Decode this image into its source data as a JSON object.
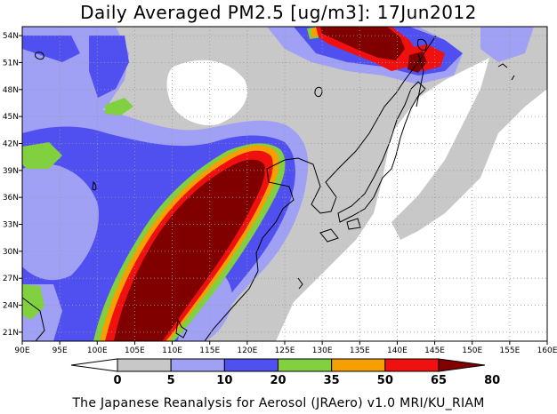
{
  "title": "Daily Averaged PM2.5 [ug/m3]: 17Jun2012",
  "caption": "The Japanese Reanalysis for Aerosol (JRAero) v1.0 MRI/KU_RIAM",
  "map": {
    "lon_labels": [
      "90E",
      "95E",
      "100E",
      "105E",
      "110E",
      "115E",
      "120E",
      "125E",
      "130E",
      "135E",
      "140E",
      "145E",
      "150E",
      "155E",
      "160E"
    ],
    "lat_labels": [
      "54N",
      "51N",
      "48N",
      "45N",
      "42N",
      "39N",
      "36N",
      "33N",
      "30N",
      "27N",
      "24N",
      "21N"
    ],
    "lon_range": [
      90,
      160
    ],
    "lat_range": [
      20,
      55
    ],
    "grid": "dotted",
    "field": "PM2.5 daily mean"
  },
  "colorbar": {
    "labels": [
      "0",
      "5",
      "10",
      "20",
      "35",
      "50",
      "65",
      "80"
    ],
    "colors": [
      "#ffffff",
      "#c8c8c8",
      "#a0a0f5",
      "#5050f0",
      "#80d040",
      "#f5a000",
      "#f01010",
      "#800000"
    ]
  }
}
